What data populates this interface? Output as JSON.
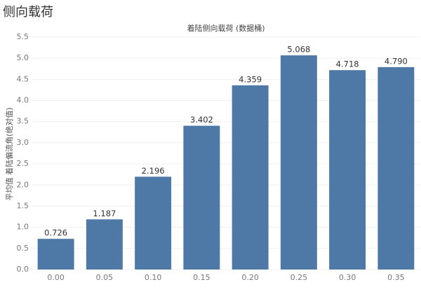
{
  "chart_data": {
    "type": "bar",
    "title": "侧向载荷",
    "subtitle": "着陆侧向载荷 (数据桶)",
    "y_label": "平均值 着陆偏流角(绝对值)",
    "categories": [
      "0.00",
      "0.05",
      "0.10",
      "0.15",
      "0.20",
      "0.25",
      "0.30",
      "0.35"
    ],
    "values": [
      0.726,
      1.187,
      2.196,
      3.402,
      4.359,
      5.068,
      4.718,
      4.79
    ],
    "value_labels": [
      "0.726",
      "1.187",
      "2.196",
      "3.402",
      "4.359",
      "5.068",
      "4.718",
      "4.790"
    ],
    "color": "#4e78a6",
    "ylim": [
      0,
      5.5
    ],
    "yticks": [
      {
        "value": 0,
        "label": "0.0"
      },
      0.5,
      {
        "value": 1,
        "label": "1.0"
      },
      1.5,
      {
        "value": 2,
        "label": "2.0"
      },
      2.5,
      {
        "value": 3,
        "label": "3.0"
      },
      3.5,
      {
        "value": 4,
        "label": "4.0"
      },
      4.5,
      {
        "value": 5,
        "label": "5.0"
      },
      5.5
    ],
    "grid": true
  }
}
